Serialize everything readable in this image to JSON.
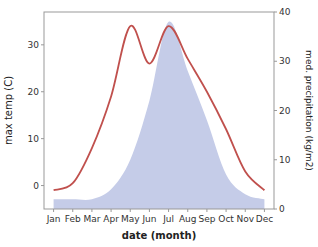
{
  "chart_data": {
    "type": "line",
    "categories": [
      "Jan",
      "Feb",
      "Mar",
      "Apr",
      "May",
      "Jun",
      "Jul",
      "Aug",
      "Sep",
      "Oct",
      "Nov",
      "Dec"
    ],
    "xlabel": "date (month)",
    "ylabel": "max temp (C)",
    "y2label": "med. precipitation (kg/m2)",
    "series": [
      {
        "type": "area",
        "axis": "y2",
        "color": "#c5cce8",
        "values": [
          2,
          2,
          2,
          4,
          10,
          22,
          38,
          28,
          18,
          7,
          3,
          2
        ]
      },
      {
        "type": "line",
        "color": "#c0504d",
        "values": [
          -1,
          0.5,
          8,
          19,
          34,
          26,
          34,
          27,
          20,
          12,
          3,
          -1
        ]
      }
    ],
    "ylim": [
      -5,
      37
    ],
    "yticks": [
      0,
      10,
      20,
      30
    ],
    "y2lim": [
      0,
      40
    ],
    "y2ticks": [
      0,
      10,
      20,
      30,
      40
    ],
    "grid": false
  }
}
